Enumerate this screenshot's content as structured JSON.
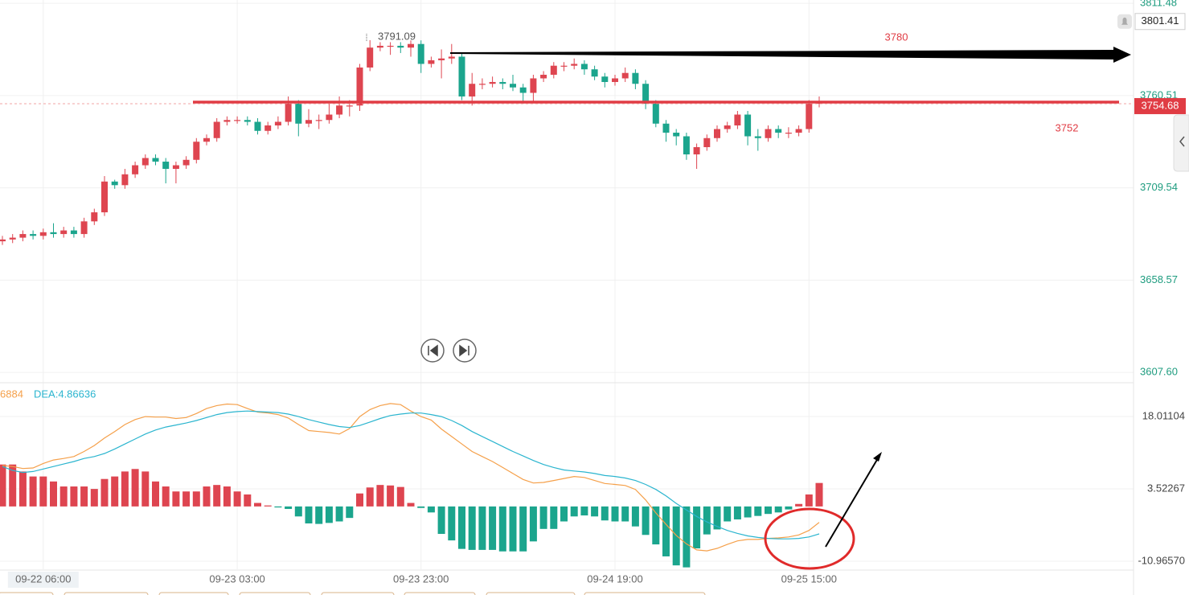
{
  "chart_data": [
    {
      "type": "candlestick",
      "open": [
        3680,
        3681,
        3682,
        3684,
        3683,
        3685,
        3684,
        3686,
        3684,
        3691,
        3696,
        3713,
        3711,
        3717,
        3722,
        3726,
        3724,
        3720,
        3722,
        3725,
        3735,
        3737,
        3746,
        3747,
        3747,
        3746,
        3741,
        3744,
        3746,
        3756,
        3745,
        3747,
        3747,
        3750,
        3755,
        3755,
        3776,
        3787,
        3788,
        3788,
        3787,
        3789,
        3778,
        3780,
        3781,
        3782,
        3760,
        3767,
        3767,
        3768,
        3767,
        3765,
        3762,
        3770,
        3772,
        3777,
        3777,
        3778,
        3775,
        3771,
        3768,
        3770,
        3773,
        3767,
        3756,
        3745,
        3740,
        3738,
        3728,
        3732,
        3737,
        3742,
        3744,
        3750,
        3738,
        3737,
        3742,
        3740,
        3740,
        3742,
        3756
      ],
      "high": [
        3683,
        3684,
        3686,
        3686,
        3687,
        3690,
        3688,
        3688,
        3693,
        3698,
        3716,
        3714,
        3720,
        3724,
        3728,
        3728,
        3726,
        3724,
        3727,
        3737,
        3739,
        3748,
        3749,
        3749,
        3749,
        3748,
        3746,
        3749,
        3760,
        3758,
        3753,
        3750,
        3756,
        3760,
        3758,
        3778,
        3791.09,
        3790,
        3790,
        3790,
        3791,
        3791,
        3782,
        3786,
        3789,
        3784,
        3773,
        3770,
        3771,
        3770,
        3772,
        3767,
        3772,
        3774,
        3779,
        3779,
        3781,
        3780,
        3777,
        3773,
        3772,
        3776,
        3775,
        3769,
        3758,
        3747,
        3742,
        3740,
        3734,
        3739,
        3744,
        3746,
        3752,
        3752,
        3742,
        3744,
        3744,
        3743,
        3744,
        3758,
        3760
      ],
      "low": [
        3678,
        3679,
        3680,
        3681,
        3681,
        3682,
        3682,
        3682,
        3682,
        3689,
        3694,
        3709,
        3709,
        3715,
        3720,
        3722,
        3712,
        3712,
        3720,
        3723,
        3733,
        3735,
        3744,
        3745,
        3744,
        3739,
        3739,
        3742,
        3744,
        3738,
        3743,
        3742,
        3745,
        3748,
        3749,
        3752,
        3774,
        3785,
        3783,
        3784,
        3782,
        3773,
        3776,
        3770,
        3778,
        3758,
        3755,
        3764,
        3765,
        3764,
        3763,
        3756,
        3757,
        3768,
        3770,
        3774,
        3775,
        3772,
        3769,
        3765,
        3766,
        3768,
        3764,
        3753,
        3743,
        3735,
        3733,
        3725,
        3720,
        3730,
        3735,
        3740,
        3742,
        3733,
        3730,
        3735,
        3737,
        3737,
        3738,
        3740,
        3754
      ],
      "close": [
        3681,
        3682,
        3684,
        3683,
        3685,
        3684,
        3686,
        3684,
        3691,
        3696,
        3713,
        3711,
        3717,
        3722,
        3726,
        3724,
        3720,
        3722,
        3725,
        3735,
        3737,
        3746,
        3747,
        3747,
        3746,
        3741,
        3744,
        3746,
        3756,
        3745,
        3747,
        3747,
        3750,
        3755,
        3755,
        3776,
        3787,
        3788,
        3788,
        3787,
        3789,
        3778,
        3780,
        3781,
        3782,
        3760,
        3767,
        3767,
        3768,
        3767,
        3765,
        3762,
        3770,
        3772,
        3777,
        3777,
        3778,
        3775,
        3771,
        3768,
        3770,
        3773,
        3767,
        3756,
        3745,
        3740,
        3738,
        3728,
        3732,
        3737,
        3742,
        3744,
        3750,
        3738,
        3737,
        3742,
        3740,
        3740,
        3742,
        3756,
        3757
      ],
      "up_color": "#de4550",
      "down_color": "#1ba58d",
      "ylim": [
        3602.3,
        3813.3
      ],
      "yticks": [
        {
          "value": 3607.6,
          "label": "3607.60"
        },
        3658.57,
        3709.54,
        3760.51,
        3811.48
      ],
      "grid": true,
      "last_price": 3754.68,
      "alert_price": 3801.41,
      "annotations": [
        "3780",
        "3752"
      ]
    },
    {
      "type": "macd",
      "categories": [
        null,
        null,
        null,
        null,
        "09-22 06:00",
        null,
        null,
        null,
        null,
        null,
        null,
        null,
        null,
        null,
        null,
        null,
        null,
        null,
        null,
        null,
        null,
        null,
        null,
        "09-23 03:00",
        null,
        null,
        null,
        null,
        null,
        null,
        null,
        null,
        null,
        null,
        null,
        null,
        null,
        null,
        null,
        null,
        null,
        "09-23 23:00",
        null,
        null,
        null,
        null,
        null,
        null,
        null,
        null,
        null,
        null,
        null,
        null,
        null,
        null,
        null,
        null,
        null,
        null,
        "09-24 19:00",
        null,
        null,
        null,
        null,
        null,
        null,
        null,
        null,
        null,
        null,
        null,
        null,
        null,
        null,
        null,
        null,
        null,
        null,
        "09-25 15:00",
        null
      ],
      "histogram": [
        8.4,
        8.4,
        7,
        6,
        6,
        5,
        4,
        4,
        4,
        3.5,
        5.5,
        6,
        7,
        7.5,
        7,
        5,
        4,
        3,
        3,
        3,
        4,
        4.3,
        4,
        3,
        2.4,
        0.7,
        0.2,
        -0.2,
        -0.5,
        -2,
        -3.4,
        -3.5,
        -3.3,
        -3,
        -2.3,
        2.6,
        3.8,
        4.3,
        4.2,
        3.9,
        0.7,
        -0.3,
        -1.2,
        -5.5,
        -6.8,
        -8.5,
        -8.7,
        -8.7,
        -8.7,
        -9,
        -9,
        -9,
        -7,
        -4.5,
        -4.5,
        -3,
        -2,
        -1.8,
        -2,
        -2.8,
        -3,
        -3,
        -4,
        -5.7,
        -7.6,
        -10,
        -11.8,
        -12.2,
        -8.4,
        -5.6,
        -4.6,
        -3,
        -2.6,
        -2.2,
        -1.9,
        -1.5,
        -1.2,
        -0.6,
        0.5,
        2.4,
        4.7
      ],
      "series": [
        {
          "color": "#f5a04a",
          "values": [
            8.2,
            8,
            7.6,
            7.7,
            8.6,
            9.3,
            9.6,
            10,
            11,
            12.2,
            13.7,
            15,
            16.4,
            17.4,
            18,
            17.9,
            17.9,
            17.6,
            17.8,
            18.6,
            19.6,
            20.2,
            20.5,
            20.4,
            19.6,
            18.9,
            18.7,
            18.4,
            17.7,
            16.4,
            15.2,
            15,
            14.8,
            14.5,
            15.6,
            18,
            19.4,
            20.2,
            20.6,
            20.4,
            19.1,
            18,
            17.3,
            15.5,
            14,
            12.5,
            11,
            10,
            9,
            7.8,
            6.6,
            5.4,
            4.7,
            4.8,
            5.2,
            5.6,
            6,
            5.8,
            5.2,
            4.6,
            4.4,
            4.2,
            3.4,
            1.3,
            -1.3,
            -3.6,
            -5.8,
            -7.5,
            -8.7,
            -8.9,
            -8.4,
            -7.6,
            -6.9,
            -6.6,
            -6.6,
            -6.4,
            -6.3,
            -6.1,
            -5.7,
            -4.8,
            -3.2
          ]
        },
        {
          "color": "#2bb5cf",
          "values": [
            8,
            7.2,
            6.8,
            7,
            7.5,
            8,
            8.5,
            9,
            9.6,
            10,
            10.6,
            11.5,
            12.5,
            13.5,
            14.5,
            15.3,
            15.9,
            16.3,
            16.7,
            17.2,
            17.8,
            18.4,
            18.8,
            19,
            19.1,
            19,
            18.9,
            18.8,
            18.5,
            18,
            17.4,
            16.9,
            16.4,
            16,
            15.8,
            16.2,
            16.9,
            17.6,
            18.2,
            18.5,
            18.7,
            18.7,
            18.4,
            18,
            17.2,
            16.2,
            15,
            14,
            13,
            12,
            11,
            10.1,
            9.2,
            8.4,
            7.8,
            7.3,
            7.1,
            6.9,
            6.6,
            6.2,
            6,
            5.7,
            5.2,
            4.4,
            3.4,
            2.1,
            0.6,
            -0.7,
            -2,
            -3.1,
            -4,
            -4.8,
            -5.4,
            -5.9,
            -6.2,
            -6.4,
            -6.5,
            -6.5,
            -6.4,
            -6.1,
            -5.5
          ]
        }
      ],
      "legend_labels": [
        "6884",
        "DEA:4.86636"
      ],
      "ylim": [
        -12.58,
        24.45
      ],
      "yticks": [
        18.01104,
        3.52267,
        {
          "value": -10.9657,
          "label": "-10.96570"
        }
      ],
      "grid": true
    }
  ]
}
